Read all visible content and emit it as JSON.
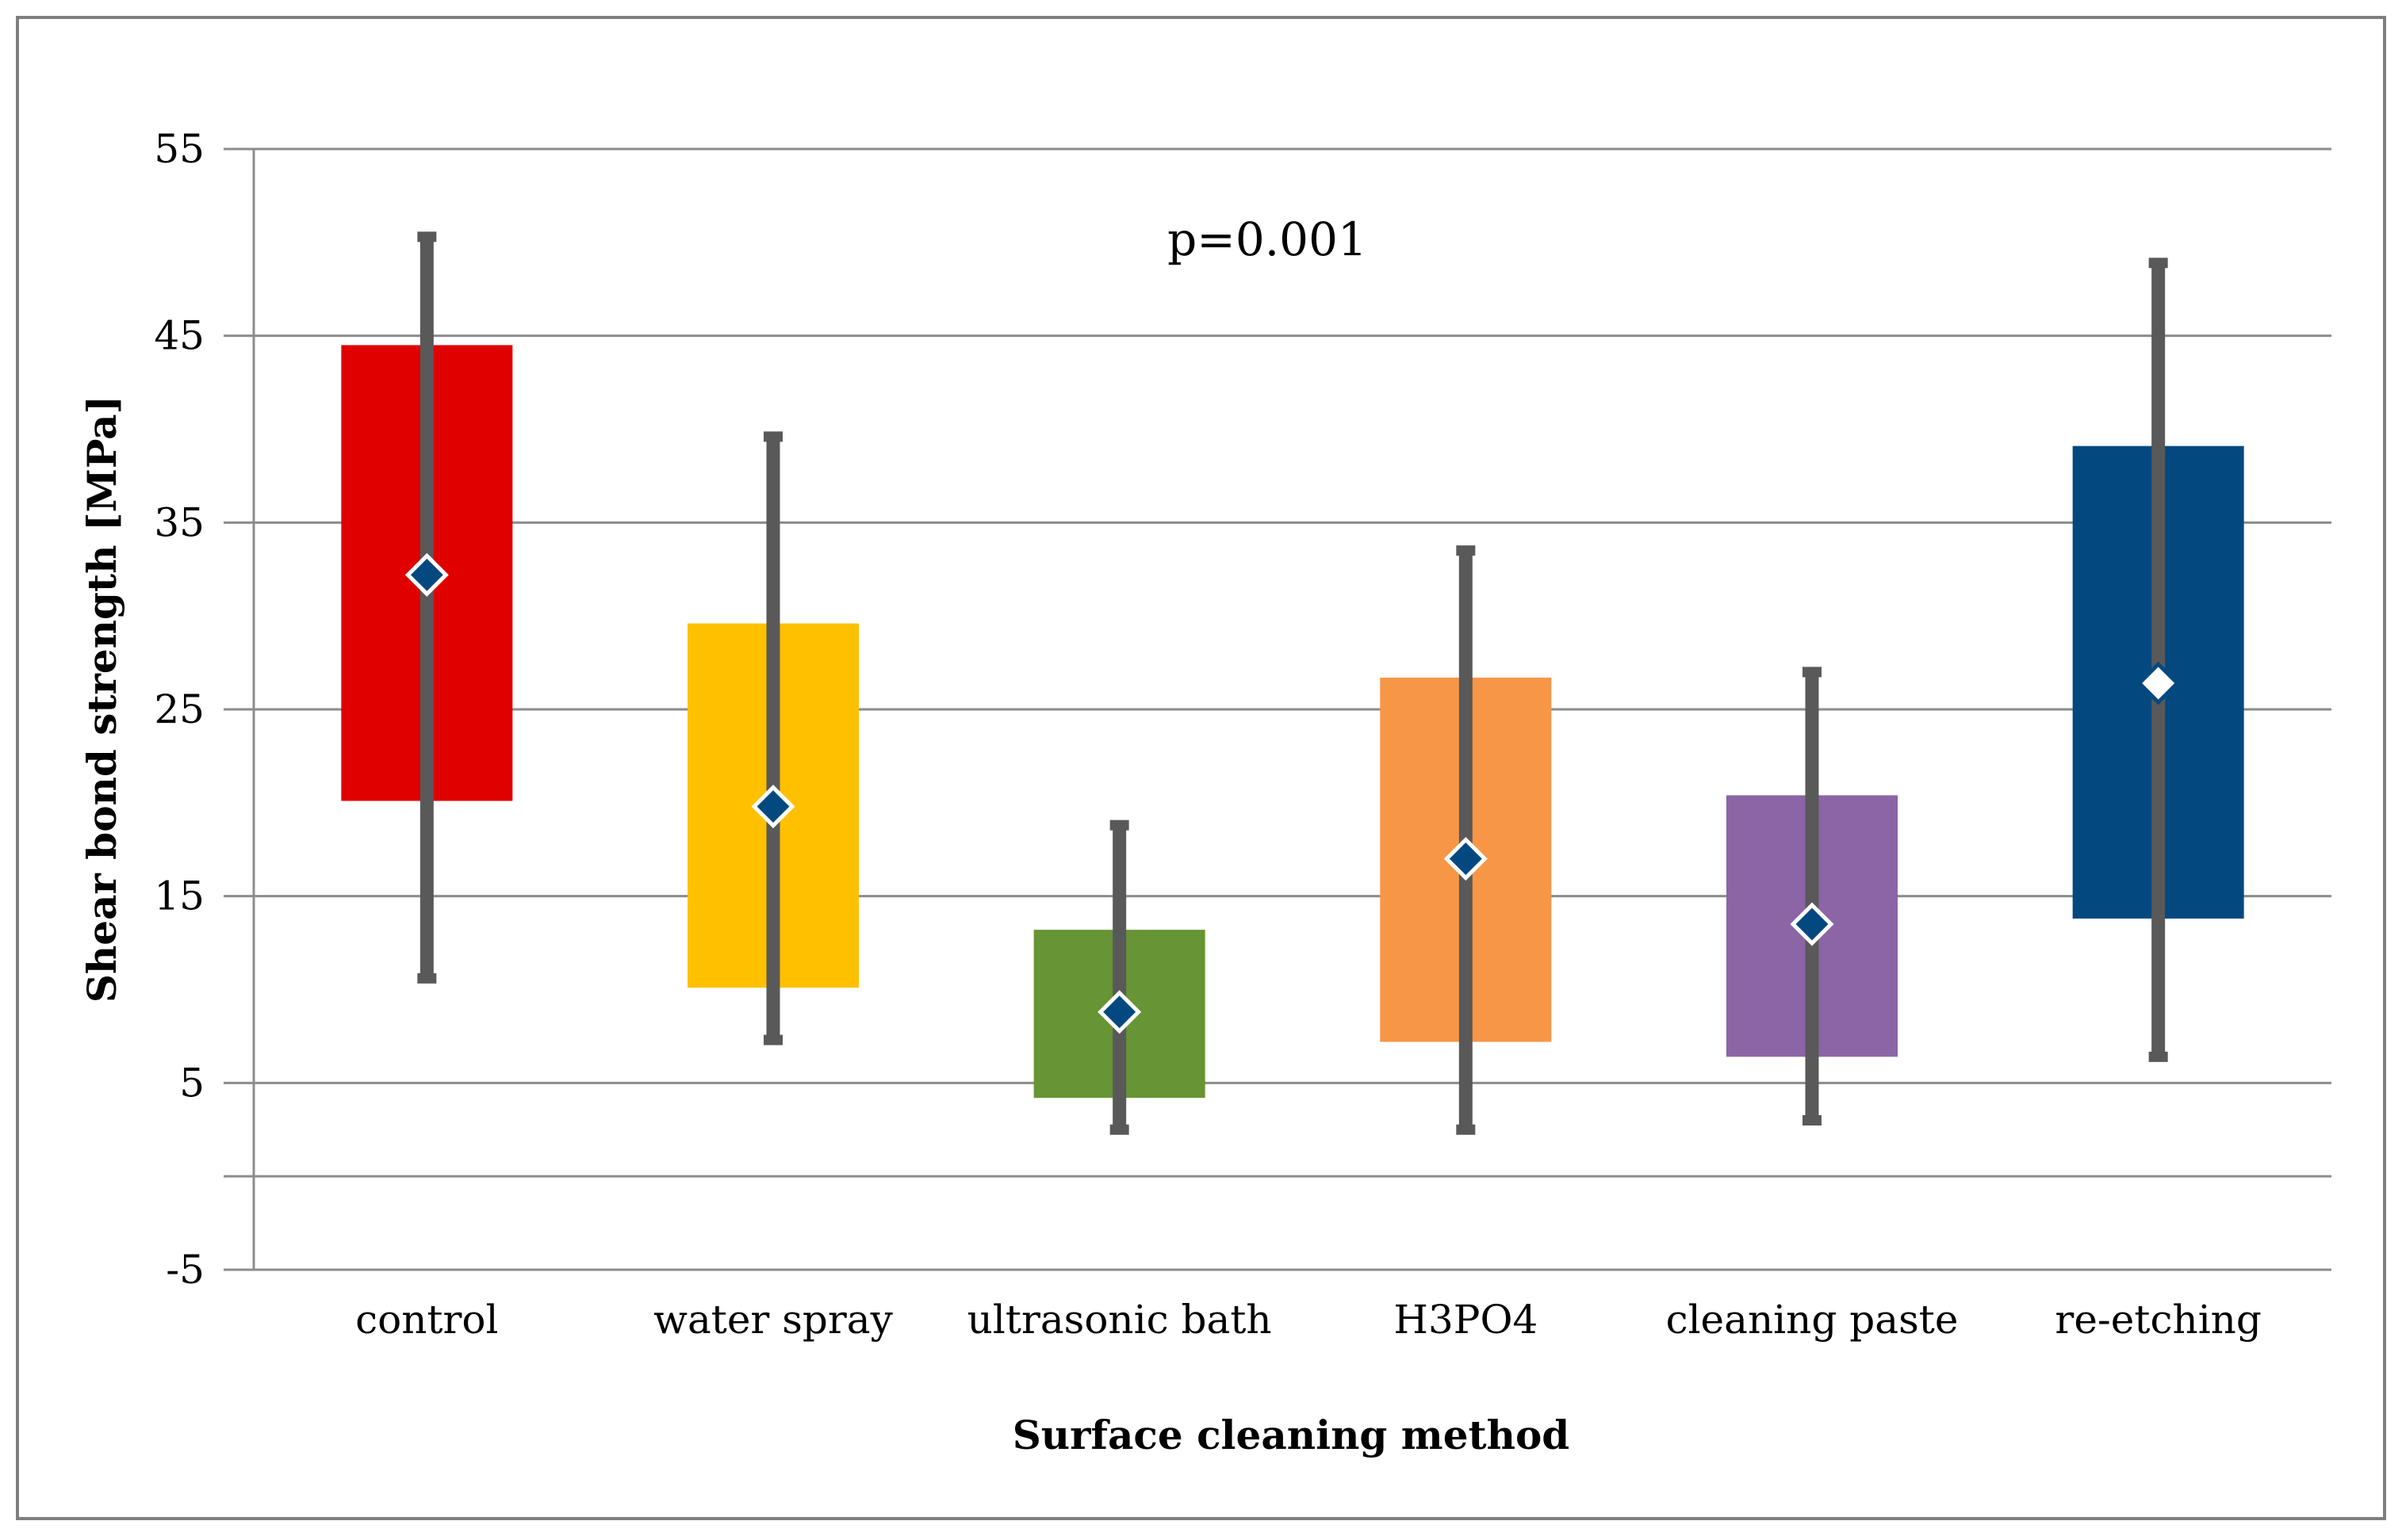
{
  "chart_data": {
    "type": "box",
    "title": "",
    "xlabel": "Surface cleaning method",
    "ylabel": "Shear bond strength [MPa]",
    "ylim": [
      -5,
      55
    ],
    "yticks": [
      "55",
      "45",
      "35",
      "25",
      "15",
      "5",
      "-5"
    ],
    "ytick_values": [
      55,
      45,
      35,
      25,
      15,
      5,
      -5
    ],
    "extra_gridline_values": [
      0
    ],
    "grid": true,
    "annotation": "p=0.001",
    "categories": [
      "control",
      "water spray",
      "ultrasonic bath",
      "H3PO4",
      "cleaning paste",
      "re-etching"
    ],
    "colors": [
      "#e00000",
      "#ffc000",
      "#679434",
      "#f79646",
      "#8b65a6",
      "#034980"
    ],
    "box_low": [
      20.1,
      10.1,
      4.2,
      7.2,
      6.4,
      13.8
    ],
    "box_high": [
      44.5,
      29.6,
      13.2,
      26.7,
      20.4,
      39.1
    ],
    "whisker_low": [
      10.6,
      7.3,
      2.5,
      2.5,
      3.0,
      6.4
    ],
    "whisker_high": [
      50.3,
      39.6,
      18.8,
      33.5,
      27.0,
      48.9
    ],
    "mean": [
      32.2,
      19.8,
      8.8,
      17.0,
      13.5,
      26.4
    ],
    "mean_marker_fill": [
      "#034980",
      "#034980",
      "#034980",
      "#034980",
      "#034980",
      "#ffffff"
    ]
  }
}
